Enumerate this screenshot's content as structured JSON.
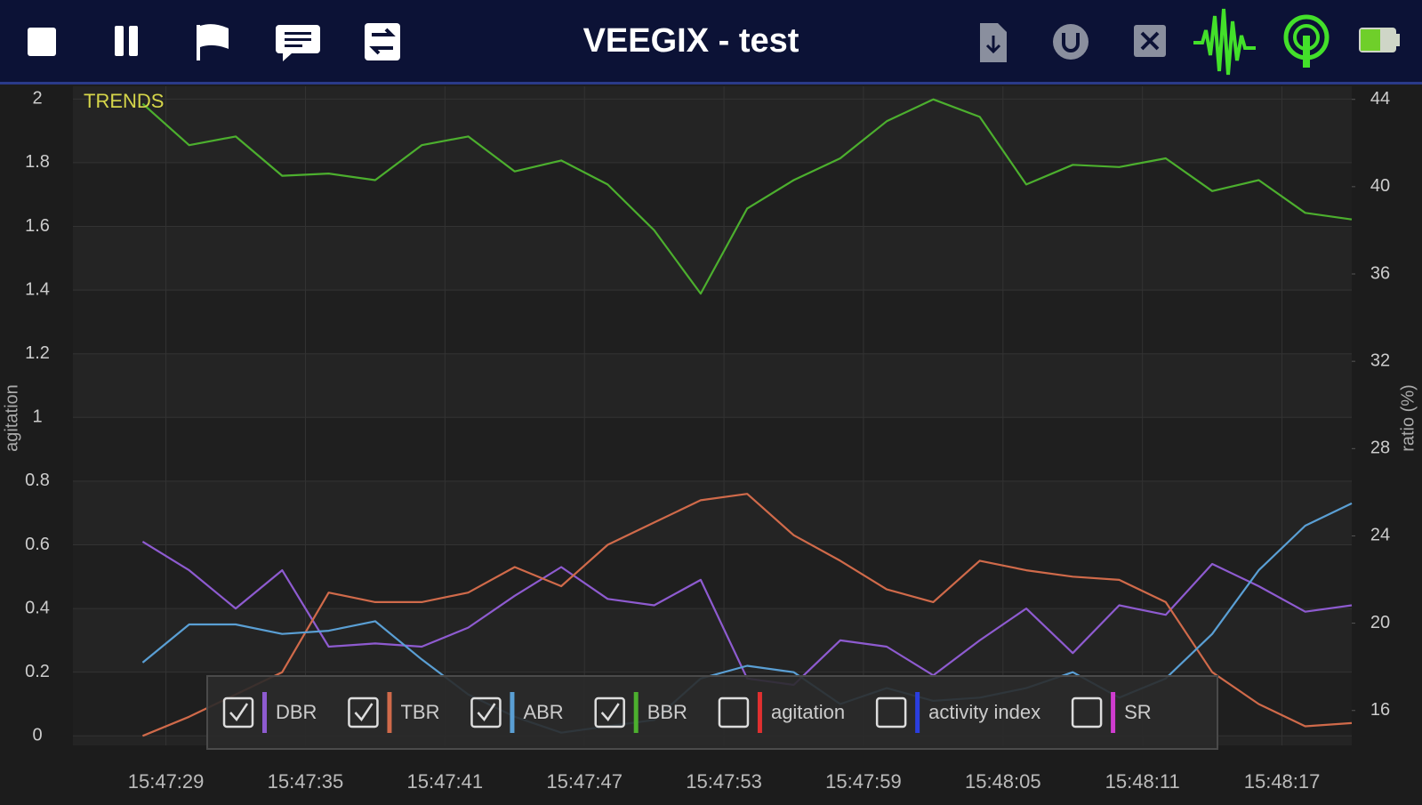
{
  "app_bar": {
    "title": "VEEGIX - test"
  },
  "chart_data": {
    "type": "line",
    "annotation": "TRENDS",
    "ylabel": "agitation",
    "y2label": "ratio (%)",
    "x": [
      "15:47:28",
      "15:47:30",
      "15:47:32",
      "15:47:34",
      "15:47:36",
      "15:47:38",
      "15:47:40",
      "15:47:42",
      "15:47:44",
      "15:47:46",
      "15:47:48",
      "15:47:50",
      "15:47:52",
      "15:47:54",
      "15:47:56",
      "15:47:58",
      "15:48:00",
      "15:48:02",
      "15:48:04",
      "15:48:06",
      "15:48:08",
      "15:48:10",
      "15:48:12",
      "15:48:14",
      "15:48:16",
      "15:48:18",
      "15:48:20"
    ],
    "xlim": [
      "15:47:25",
      "15:48:20"
    ],
    "xticks": [
      "15:47:29",
      "15:47:35",
      "15:47:41",
      "15:47:47",
      "15:47:53",
      "15:47:59",
      "15:48:05",
      "15:48:11",
      "15:48:17"
    ],
    "ylim": [
      -0.03,
      2.04
    ],
    "yticks": [
      0,
      0.2,
      0.4,
      0.6,
      0.8,
      1,
      1.2,
      1.4,
      1.6,
      1.8,
      2
    ],
    "y2lim": [
      14.4,
      44.6
    ],
    "y2ticks": [
      16,
      20,
      24,
      28,
      32,
      36,
      40,
      44
    ],
    "grid": true,
    "series": [
      {
        "name": "DBR",
        "color": "#8e5bd0",
        "checked": true,
        "values": [
          0.61,
          0.52,
          0.4,
          0.52,
          0.28,
          0.29,
          0.28,
          0.34,
          0.44,
          0.53,
          0.43,
          0.41,
          0.49,
          0.18,
          0.16,
          0.3,
          0.28,
          0.19,
          0.3,
          0.4,
          0.26,
          0.41,
          0.38,
          0.54,
          0.47,
          0.39,
          0.41
        ]
      },
      {
        "name": "TBR",
        "color": "#d06a4a",
        "checked": true,
        "values": [
          0,
          0.06,
          0.13,
          0.2,
          0.45,
          0.42,
          0.42,
          0.45,
          0.53,
          0.47,
          0.6,
          0.67,
          0.74,
          0.76,
          0.63,
          0.55,
          0.46,
          0.42,
          0.55,
          0.52,
          0.5,
          0.49,
          0.42,
          0.2,
          0.1,
          0.03,
          0.04
        ]
      },
      {
        "name": "ABR",
        "color": "#5a9fd4",
        "checked": true,
        "values": [
          0.23,
          0.35,
          0.35,
          0.32,
          0.33,
          0.36,
          0.24,
          0.13,
          0.06,
          0.01,
          0.03,
          0.05,
          0.18,
          0.22,
          0.2,
          0.1,
          0.15,
          0.11,
          0.12,
          0.15,
          0.2,
          0.12,
          0.18,
          0.32,
          0.52,
          0.66,
          0.73
        ]
      },
      {
        "name": "BBR",
        "color": "#4caf2e",
        "checked": true,
        "axis": "y2",
        "values": [
          43.8,
          41.9,
          42.3,
          40.5,
          40.6,
          40.3,
          41.9,
          42.3,
          40.7,
          41.2,
          40.1,
          38.0,
          35.1,
          39.0,
          40.3,
          41.3,
          43.0,
          44.0,
          43.2,
          40.1,
          41.0,
          40.9,
          41.3,
          39.8,
          40.3,
          38.8,
          38.5
        ]
      },
      {
        "name": "agitation",
        "color": "#e03030",
        "checked": false
      },
      {
        "name": "activity index",
        "color": "#2a3ee0",
        "checked": false
      },
      {
        "name": "SR",
        "color": "#d03cd0",
        "checked": false
      }
    ]
  }
}
